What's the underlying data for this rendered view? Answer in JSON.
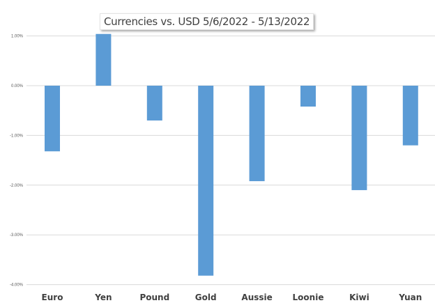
{
  "chart_data": {
    "type": "bar",
    "title": "Currencies vs. USD 5/6/2022 - 5/13/2022",
    "categories": [
      "Euro",
      "Yen",
      "Pound",
      "Gold",
      "Aussie",
      "Loonie",
      "Kiwi",
      "Yuan"
    ],
    "values": [
      -1.32,
      1.04,
      -0.7,
      -3.82,
      -1.92,
      -0.42,
      -2.1,
      -1.2
    ],
    "unit": "%",
    "xlabel": "",
    "ylabel": "",
    "ylim": [
      -4.0,
      1.0
    ],
    "yticks": [
      1.0,
      0.0,
      -1.0,
      -2.0,
      -3.0,
      -4.0
    ],
    "ytick_labels": [
      "1.00%",
      "0.00%",
      "-1.00%",
      "-2.00%",
      "-3.00%",
      "-4.00%"
    ],
    "grid": true,
    "legend": "none",
    "bar_color": "#5b9bd5"
  }
}
